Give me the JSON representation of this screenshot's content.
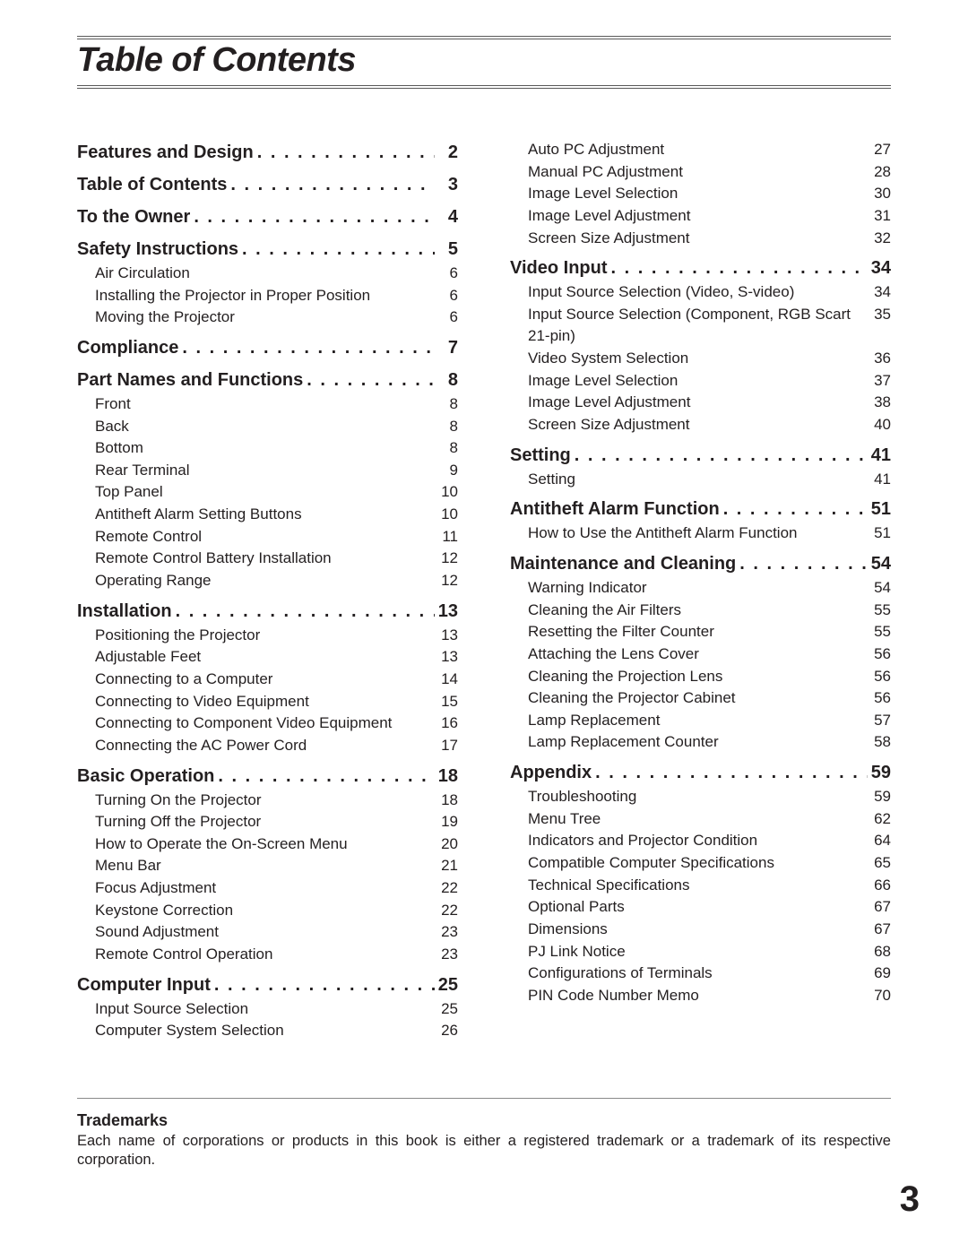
{
  "heading": "Table of Contents",
  "columns": [
    [
      {
        "title": "Features and Design",
        "page": "2",
        "items": []
      },
      {
        "title": "Table of Contents",
        "page": "3",
        "items": []
      },
      {
        "title": "To the Owner",
        "page": "4",
        "items": []
      },
      {
        "title": "Safety Instructions",
        "page": "5",
        "items": [
          {
            "title": "Air Circulation",
            "page": "6"
          },
          {
            "title": "Installing the Projector in Proper Position",
            "page": "6"
          },
          {
            "title": "Moving the Projector",
            "page": "6"
          }
        ]
      },
      {
        "title": "Compliance",
        "page": "7",
        "items": []
      },
      {
        "title": "Part Names and Functions",
        "page": "8",
        "items": [
          {
            "title": "Front",
            "page": "8"
          },
          {
            "title": "Back",
            "page": "8"
          },
          {
            "title": "Bottom",
            "page": "8"
          },
          {
            "title": "Rear Terminal",
            "page": "9"
          },
          {
            "title": "Top Panel",
            "page": "10"
          },
          {
            "title": "Antitheft Alarm Setting Buttons",
            "page": "10"
          },
          {
            "title": "Remote Control",
            "page": "11"
          },
          {
            "title": "Remote Control Battery Installation",
            "page": "12"
          },
          {
            "title": "Operating Range",
            "page": "12"
          }
        ]
      },
      {
        "title": "Installation",
        "page": "13",
        "items": [
          {
            "title": "Positioning the Projector",
            "page": "13"
          },
          {
            "title": "Adjustable Feet",
            "page": "13"
          },
          {
            "title": "Connecting to a Computer",
            "page": "14"
          },
          {
            "title": "Connecting to Video Equipment",
            "page": "15"
          },
          {
            "title": "Connecting to Component Video Equipment",
            "page": "16"
          },
          {
            "title": "Connecting the AC Power Cord",
            "page": "17"
          }
        ]
      },
      {
        "title": "Basic Operation",
        "page": "18",
        "items": [
          {
            "title": "Turning On the Projector",
            "page": "18"
          },
          {
            "title": "Turning Off the Projector",
            "page": "19"
          },
          {
            "title": "How to Operate the On-Screen Menu",
            "page": "20"
          },
          {
            "title": "Menu Bar",
            "page": "21"
          },
          {
            "title": "Focus Adjustment",
            "page": "22"
          },
          {
            "title": "Keystone Correction",
            "page": "22"
          },
          {
            "title": "Sound Adjustment",
            "page": "23"
          },
          {
            "title": "Remote Control Operation",
            "page": "23"
          }
        ]
      },
      {
        "title": "Computer Input",
        "page": "25",
        "items": [
          {
            "title": "Input Source Selection",
            "page": "25"
          },
          {
            "title": "Computer System Selection",
            "page": "26"
          }
        ]
      }
    ],
    [
      {
        "title": null,
        "page": null,
        "items": [
          {
            "title": "Auto PC Adjustment",
            "page": "27"
          },
          {
            "title": "Manual PC Adjustment",
            "page": "28"
          },
          {
            "title": "Image Level Selection",
            "page": "30"
          },
          {
            "title": "Image Level Adjustment",
            "page": "31"
          },
          {
            "title": "Screen Size Adjustment",
            "page": "32"
          }
        ]
      },
      {
        "title": "Video Input",
        "page": "34",
        "items": [
          {
            "title": "Input Source Selection (Video, S-video)",
            "page": "34"
          },
          {
            "title": "Input Source Selection (Component, RGB Scart 21-pin)",
            "page": "35"
          },
          {
            "title": "Video System Selection",
            "page": "36"
          },
          {
            "title": "Image Level Selection",
            "page": "37"
          },
          {
            "title": "Image Level Adjustment",
            "page": "38"
          },
          {
            "title": "Screen Size Adjustment",
            "page": "40"
          }
        ]
      },
      {
        "title": "Setting",
        "page": "41",
        "items": [
          {
            "title": "Setting",
            "page": "41"
          }
        ]
      },
      {
        "title": "Antitheft Alarm Function",
        "page": "51",
        "items": [
          {
            "title": "How to Use the Antitheft Alarm Function",
            "page": "51"
          }
        ]
      },
      {
        "title": "Maintenance and Cleaning",
        "page": "54",
        "items": [
          {
            "title": "Warning Indicator",
            "page": "54"
          },
          {
            "title": "Cleaning the Air Filters",
            "page": "55"
          },
          {
            "title": "Resetting the Filter Counter",
            "page": "55"
          },
          {
            "title": "Attaching the Lens Cover",
            "page": "56"
          },
          {
            "title": "Cleaning the Projection Lens",
            "page": "56"
          },
          {
            "title": "Cleaning the Projector Cabinet",
            "page": "56"
          },
          {
            "title": "Lamp Replacement",
            "page": "57"
          },
          {
            "title": "Lamp Replacement Counter",
            "page": "58"
          }
        ]
      },
      {
        "title": "Appendix",
        "page": "59",
        "items": [
          {
            "title": "Troubleshooting",
            "page": "59"
          },
          {
            "title": "Menu Tree",
            "page": "62"
          },
          {
            "title": "Indicators and Projector Condition",
            "page": "64"
          },
          {
            "title": "Compatible Computer Specifications",
            "page": "65"
          },
          {
            "title": "Technical Specifications",
            "page": "66"
          },
          {
            "title": "Optional Parts",
            "page": "67"
          },
          {
            "title": "Dimensions",
            "page": "67"
          },
          {
            "title": "PJ Link Notice",
            "page": "68"
          },
          {
            "title": "Configurations of Terminals",
            "page": "69"
          },
          {
            "title": "PIN Code Number Memo",
            "page": "70"
          }
        ]
      }
    ]
  ],
  "footer": {
    "title": "Trademarks",
    "text": "Each name of corporations or products in this book is either a registered trademark or a trademark of its respective corporation."
  },
  "page_number": "3"
}
